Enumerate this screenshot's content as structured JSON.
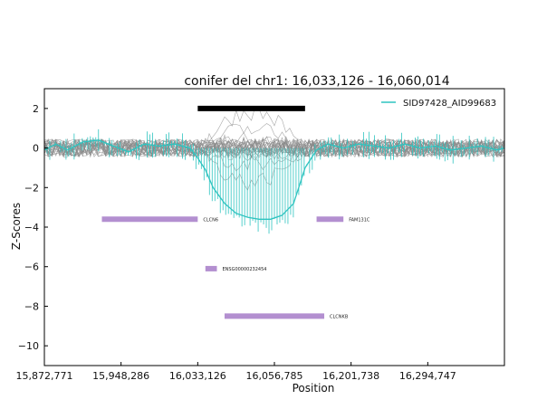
{
  "chart_data": {
    "type": "line",
    "title": "conifer del chr1: 16,033,126 - 16,060,014",
    "xlabel": "Position",
    "ylabel": "Z-Scores",
    "ylim": [
      -11,
      3
    ],
    "xlim": [
      0,
      6
    ],
    "y_ticks": [
      2,
      0,
      -2,
      -4,
      -6,
      -8,
      -10
    ],
    "y_tick_labels": [
      "2",
      "0",
      "−2",
      "−4",
      "−6",
      "−8",
      "−10"
    ],
    "x_ticks": [
      0,
      1,
      2,
      3,
      4,
      5
    ],
    "x_tick_labels": [
      "15,872,771",
      "15,948,286",
      "16,033,126",
      "16,056,785",
      "16,201,738",
      "16,294,747"
    ],
    "grid": false,
    "legend_position": "top-right",
    "highlighted_sample": {
      "name": "SID97428_AID99683",
      "color": "#2ec4c0",
      "x": [
        0,
        0.15,
        0.3,
        0.5,
        0.7,
        0.9,
        1.1,
        1.3,
        1.5,
        1.7,
        1.9,
        2.0,
        2.1,
        2.2,
        2.35,
        2.5,
        2.65,
        2.8,
        2.95,
        3.1,
        3.25,
        3.4,
        3.55,
        3.7,
        3.9,
        4.1,
        4.3,
        4.5,
        4.7,
        4.9,
        5.1,
        5.3,
        5.5,
        5.7,
        5.9,
        6.0
      ],
      "y": [
        -0.1,
        0.2,
        -0.1,
        0.3,
        0.4,
        0.1,
        -0.2,
        0.2,
        0.1,
        0.2,
        0.0,
        -0.5,
        -1.1,
        -2.0,
        -2.8,
        -3.3,
        -3.5,
        -3.6,
        -3.6,
        -3.4,
        -2.8,
        -1.0,
        -0.1,
        0.2,
        0.0,
        0.2,
        0.1,
        0.0,
        0.2,
        0.0,
        0.1,
        -0.1,
        0.0,
        0.1,
        -0.1,
        0.0
      ]
    },
    "deletion_call": {
      "x_start": 2.0,
      "x_end": 3.4,
      "y": 2.0,
      "color": "#000000"
    },
    "genes": [
      {
        "name": "CLCN6",
        "x_start": 0.75,
        "x_end": 2.0,
        "y": -3.6,
        "color": "#b38fd0"
      },
      {
        "name": "FAM131C",
        "x_start": 3.55,
        "x_end": 3.9,
        "y": -3.6,
        "color": "#b38fd0"
      },
      {
        "name": "ENSG00000232454",
        "x_start": 2.1,
        "x_end": 2.25,
        "y": -6.1,
        "color": "#b38fd0"
      },
      {
        "name": "CLCNKB",
        "x_start": 2.35,
        "x_end": 3.65,
        "y": -8.5,
        "color": "#b38fd0"
      }
    ],
    "colors": {
      "background_samples": "#8a8a8a",
      "axis": "#000000"
    }
  }
}
